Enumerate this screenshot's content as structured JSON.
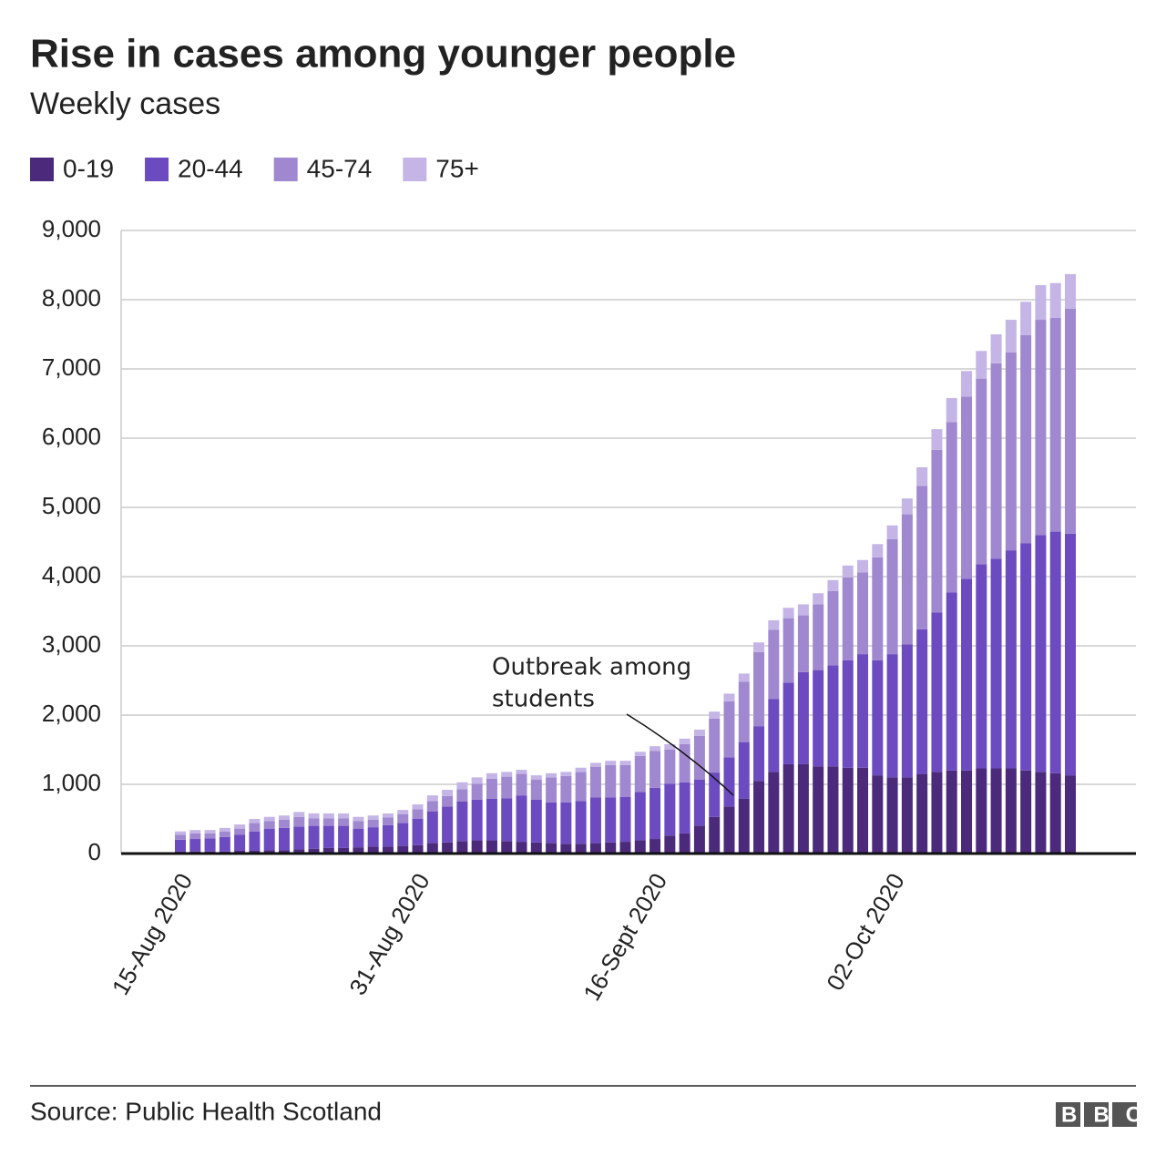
{
  "chart_data": {
    "type": "stacked-bar",
    "title": "Rise in cases among younger people",
    "subtitle": "Weekly cases",
    "source": "Source: Public Health Scotland",
    "logo": "BBC",
    "annotation": [
      "Outbreak among",
      "students"
    ],
    "categories": [
      "15-Aug 2020",
      null,
      null,
      null,
      null,
      null,
      null,
      null,
      null,
      null,
      null,
      null,
      null,
      null,
      null,
      null,
      "31-Aug 2020",
      null,
      null,
      null,
      null,
      null,
      null,
      null,
      null,
      null,
      null,
      null,
      null,
      null,
      null,
      null,
      "16-Sept 2020",
      null,
      null,
      null,
      null,
      null,
      null,
      null,
      null,
      null,
      null,
      null,
      null,
      null,
      null,
      null,
      "02-Oct 2020",
      null,
      null,
      null,
      null,
      null,
      null,
      null,
      null,
      null,
      null,
      null,
      null
    ],
    "series": [
      {
        "name": "0-19",
        "color": "#4b2a7b",
        "values": [
          30,
          30,
          30,
          30,
          40,
          40,
          50,
          50,
          60,
          70,
          80,
          80,
          90,
          100,
          100,
          110,
          120,
          150,
          160,
          180,
          190,
          190,
          180,
          170,
          160,
          150,
          140,
          140,
          150,
          160,
          170,
          190,
          210,
          260,
          290,
          400,
          530,
          680,
          790,
          1050,
          1180,
          1290,
          1290,
          1260,
          1260,
          1240,
          1240,
          1130,
          1100,
          1100,
          1150,
          1180,
          1200,
          1200,
          1230,
          1230,
          1230,
          1200,
          1180,
          1160,
          1130
        ]
      },
      {
        "name": "20-44",
        "color": "#6c4bc0",
        "values": [
          170,
          180,
          190,
          210,
          230,
          280,
          310,
          320,
          330,
          330,
          320,
          320,
          270,
          280,
          310,
          330,
          380,
          460,
          520,
          570,
          590,
          600,
          620,
          670,
          620,
          590,
          600,
          620,
          660,
          650,
          650,
          700,
          740,
          750,
          740,
          670,
          640,
          710,
          820,
          790,
          1050,
          1180,
          1330,
          1390,
          1460,
          1550,
          1640,
          1660,
          1780,
          1920,
          2090,
          2300,
          2570,
          2770,
          2950,
          3030,
          3150,
          3280,
          3420,
          3490,
          3490
        ]
      },
      {
        "name": "45-74",
        "color": "#a088d0",
        "values": [
          70,
          80,
          70,
          80,
          90,
          120,
          110,
          120,
          140,
          110,
          110,
          110,
          110,
          110,
          110,
          130,
          140,
          150,
          150,
          180,
          230,
          290,
          310,
          310,
          290,
          360,
          380,
          420,
          440,
          470,
          460,
          520,
          530,
          490,
          550,
          630,
          780,
          810,
          870,
          1070,
          1000,
          930,
          820,
          950,
          1070,
          1200,
          1180,
          1490,
          1660,
          1880,
          2070,
          2350,
          2460,
          2630,
          2680,
          2820,
          2860,
          3010,
          3110,
          3090,
          3250
        ]
      },
      {
        "name": "75+",
        "color": "#c4b5e6",
        "values": [
          50,
          50,
          50,
          50,
          60,
          60,
          60,
          60,
          70,
          70,
          70,
          70,
          60,
          60,
          60,
          60,
          70,
          80,
          90,
          100,
          90,
          80,
          70,
          60,
          60,
          60,
          60,
          60,
          60,
          60,
          60,
          60,
          70,
          80,
          80,
          90,
          100,
          110,
          120,
          140,
          140,
          150,
          160,
          160,
          160,
          170,
          180,
          190,
          200,
          230,
          270,
          300,
          350,
          370,
          400,
          420,
          470,
          480,
          500,
          500,
          500
        ]
      }
    ],
    "ylim": [
      0,
      9000
    ],
    "yticks": [
      0,
      {
        "value": 1000,
        "label": "1,000"
      },
      {
        "value": 2000,
        "label": "2,000"
      },
      {
        "value": 3000,
        "label": "3,000"
      },
      {
        "value": 4000,
        "label": "4,000"
      },
      {
        "value": 5000,
        "label": "5,000"
      },
      {
        "value": 6000,
        "label": "6,000"
      },
      {
        "value": 7000,
        "label": "7,000"
      },
      {
        "value": 8000,
        "label": "8,000"
      },
      {
        "value": 9000,
        "label": "9,000"
      }
    ],
    "grid": true
  }
}
